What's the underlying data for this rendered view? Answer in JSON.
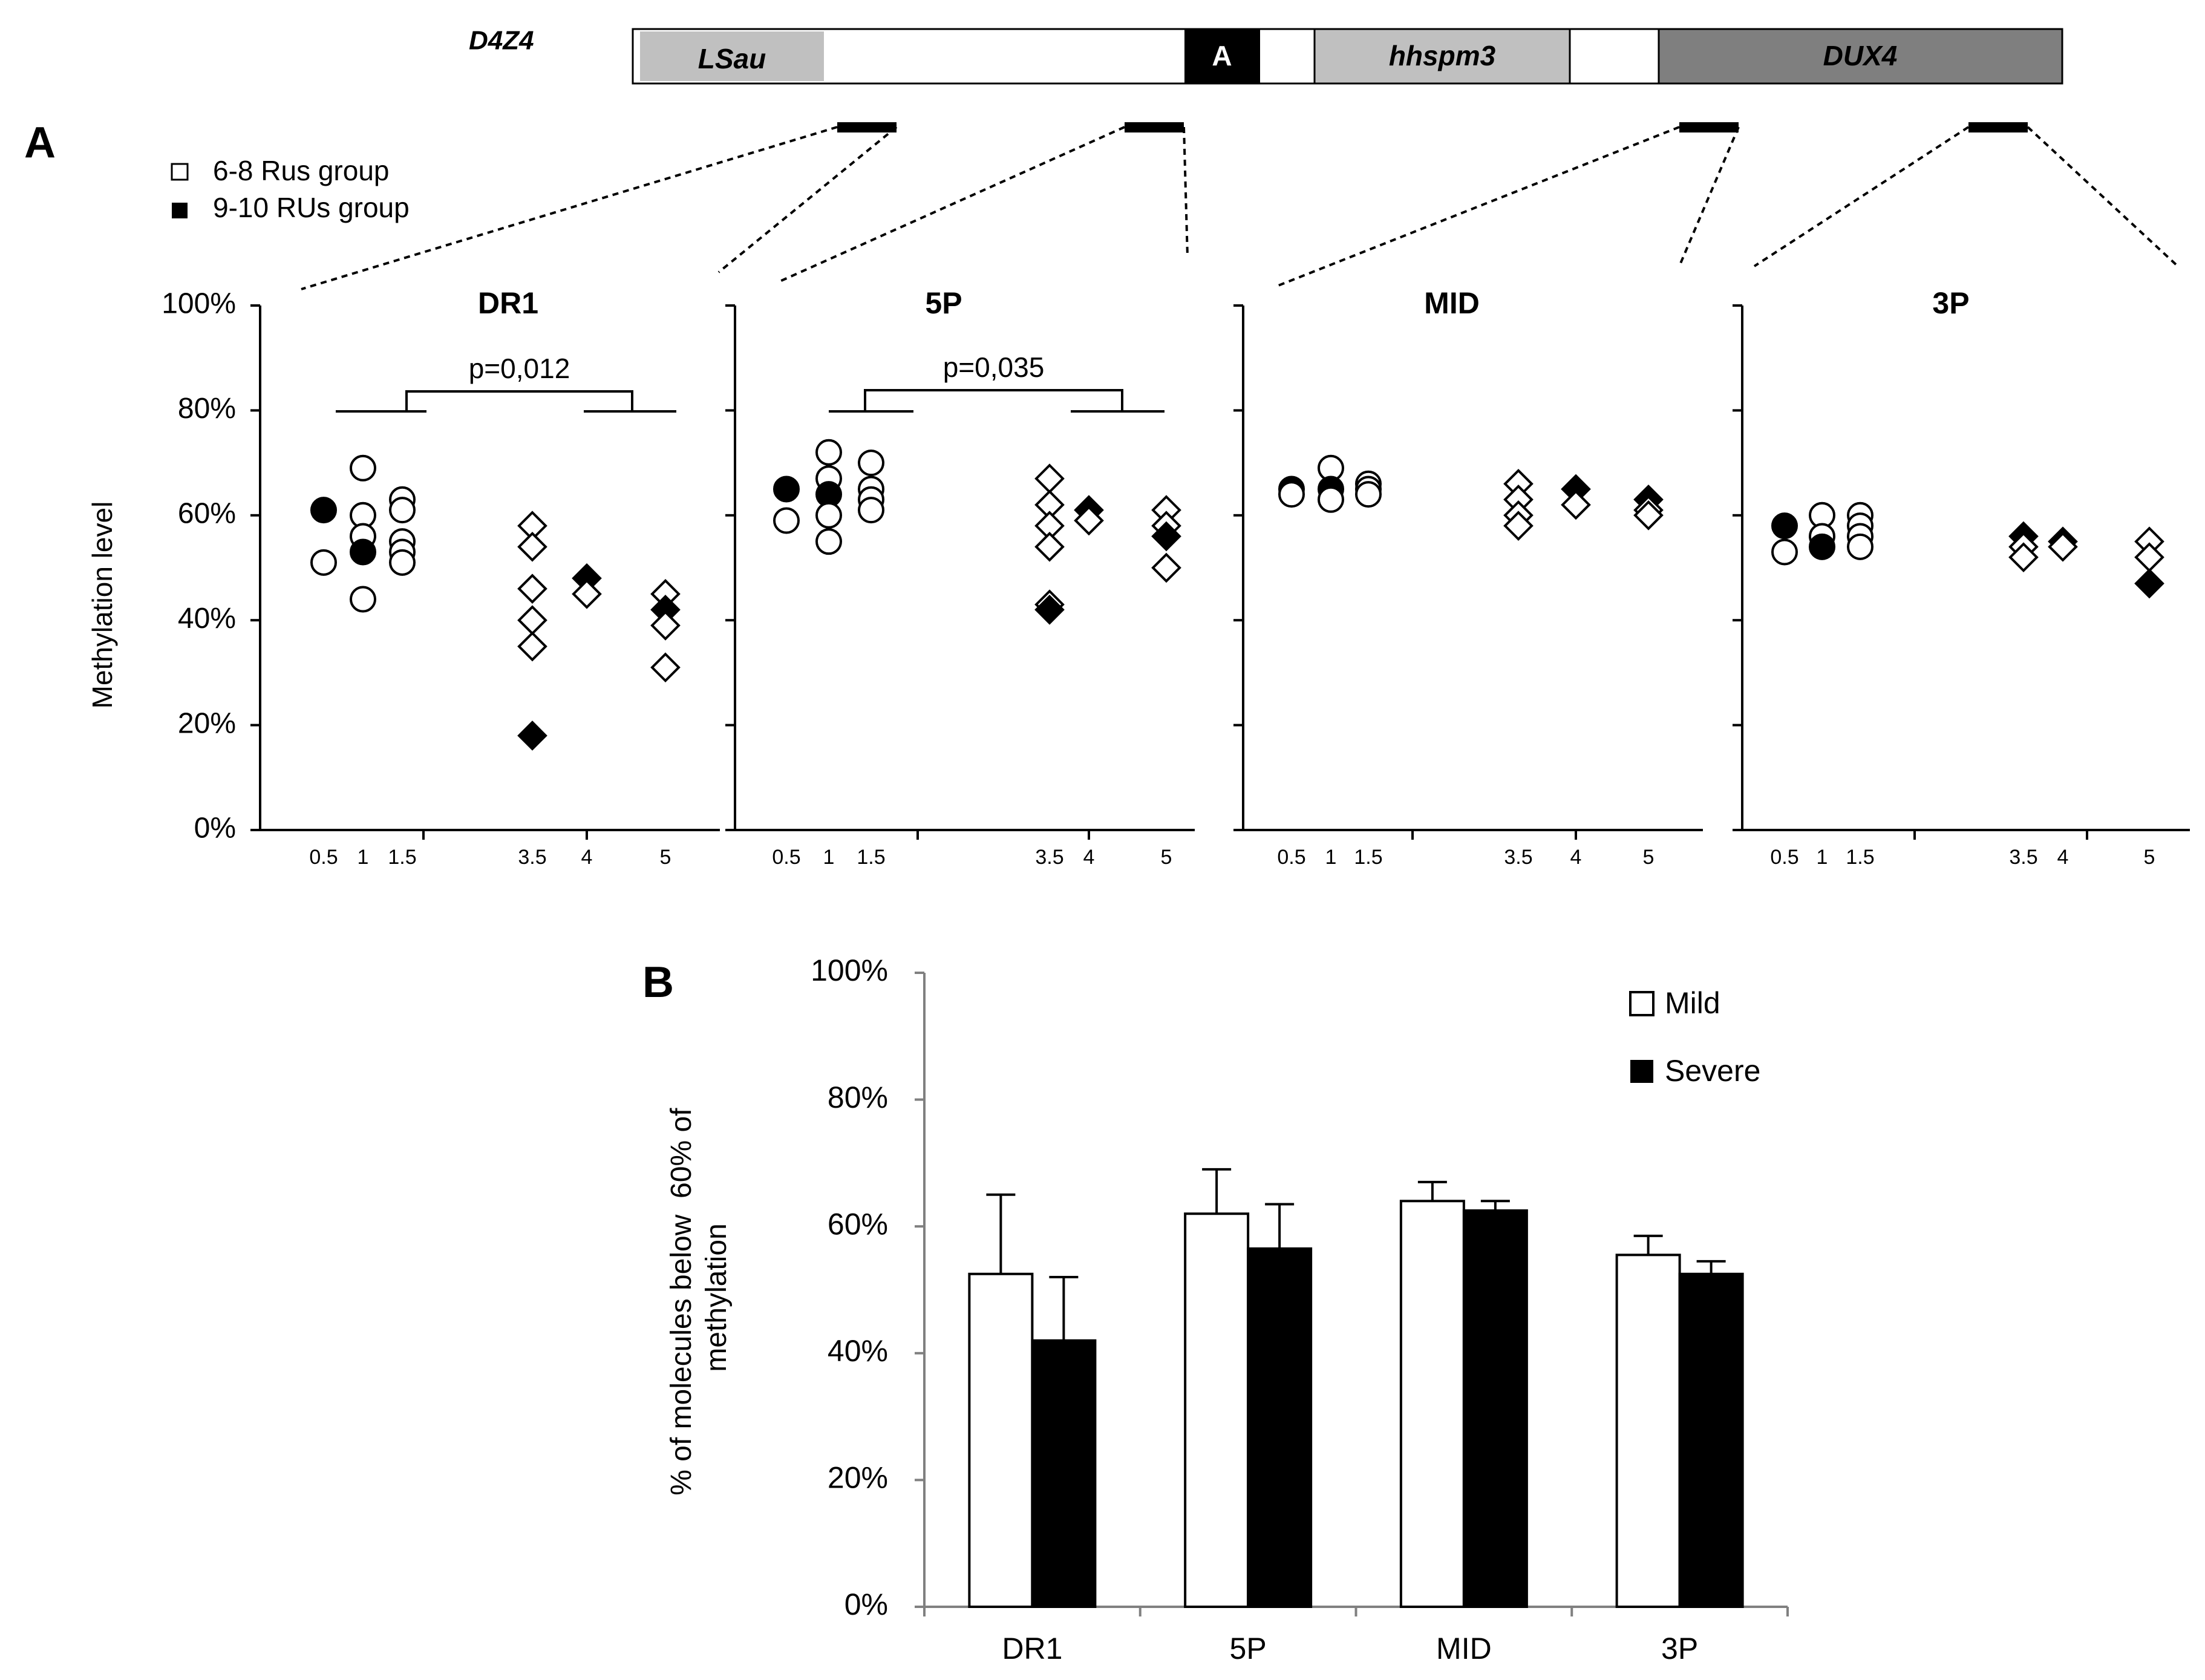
{
  "gene_map": {
    "title": "D4Z4",
    "segments": [
      {
        "label": "LSau",
        "color": "#c0c0c0"
      },
      {
        "label": "A",
        "color": "#000000"
      },
      {
        "label": "hhspm3",
        "color": "#c0c0c0"
      },
      {
        "label": "DUX4",
        "color": "#7f7f7f"
      }
    ]
  },
  "panel_labels": {
    "a": "A",
    "b": "B"
  },
  "legend_a": [
    {
      "label": "6-8 Rus group",
      "fill": "open"
    },
    {
      "label": "9-10 RUs group",
      "fill": "filled"
    }
  ],
  "chart_data": [
    {
      "type": "scatter",
      "panel": "A",
      "ylabel": "Methylation level",
      "ylim": [
        0,
        100
      ],
      "yticks": [
        "0%",
        "20%",
        "40%",
        "60%",
        "80%",
        "100%"
      ],
      "xtick_labels": [
        "0.5",
        "1",
        "1.5",
        "3.5",
        "4",
        "5"
      ],
      "groups": [
        {
          "name": "6-8 Rus group",
          "marker": "circle",
          "filled": false
        },
        {
          "name": "9-10 RUs group",
          "marker": "diamond",
          "filled": true
        }
      ],
      "subplots": [
        {
          "title": "DR1",
          "pvalue": "p=0,012",
          "points": [
            {
              "x": 0.5,
              "y": 61,
              "marker": "circle",
              "filled": true
            },
            {
              "x": 0.5,
              "y": 51,
              "marker": "circle",
              "filled": false
            },
            {
              "x": 1,
              "y": 69,
              "marker": "circle",
              "filled": false
            },
            {
              "x": 1,
              "y": 60,
              "marker": "circle",
              "filled": false
            },
            {
              "x": 1,
              "y": 56,
              "marker": "circle",
              "filled": false
            },
            {
              "x": 1,
              "y": 53,
              "marker": "circle",
              "filled": true
            },
            {
              "x": 1,
              "y": 44,
              "marker": "circle",
              "filled": false
            },
            {
              "x": 1.5,
              "y": 63,
              "marker": "circle",
              "filled": false
            },
            {
              "x": 1.5,
              "y": 61,
              "marker": "circle",
              "filled": false
            },
            {
              "x": 1.5,
              "y": 55,
              "marker": "circle",
              "filled": false
            },
            {
              "x": 1.5,
              "y": 53,
              "marker": "circle",
              "filled": false
            },
            {
              "x": 1.5,
              "y": 51,
              "marker": "circle",
              "filled": false
            },
            {
              "x": 3.5,
              "y": 58,
              "marker": "diamond",
              "filled": false
            },
            {
              "x": 3.5,
              "y": 54,
              "marker": "diamond",
              "filled": false
            },
            {
              "x": 3.5,
              "y": 46,
              "marker": "diamond",
              "filled": false
            },
            {
              "x": 3.5,
              "y": 40,
              "marker": "diamond",
              "filled": false
            },
            {
              "x": 3.5,
              "y": 35,
              "marker": "diamond",
              "filled": false
            },
            {
              "x": 3.5,
              "y": 18,
              "marker": "diamond",
              "filled": true
            },
            {
              "x": 4,
              "y": 48,
              "marker": "diamond",
              "filled": true
            },
            {
              "x": 4,
              "y": 45,
              "marker": "diamond",
              "filled": false
            },
            {
              "x": 5,
              "y": 45,
              "marker": "diamond",
              "filled": false
            },
            {
              "x": 5,
              "y": 42,
              "marker": "diamond",
              "filled": true
            },
            {
              "x": 5,
              "y": 39,
              "marker": "diamond",
              "filled": false
            },
            {
              "x": 5,
              "y": 31,
              "marker": "diamond",
              "filled": false
            }
          ]
        },
        {
          "title": "5P",
          "pvalue": "p=0,035",
          "points": [
            {
              "x": 0.5,
              "y": 65,
              "marker": "circle",
              "filled": true
            },
            {
              "x": 0.5,
              "y": 59,
              "marker": "circle",
              "filled": false
            },
            {
              "x": 1,
              "y": 72,
              "marker": "circle",
              "filled": false
            },
            {
              "x": 1,
              "y": 67,
              "marker": "circle",
              "filled": false
            },
            {
              "x": 1,
              "y": 64,
              "marker": "circle",
              "filled": true
            },
            {
              "x": 1,
              "y": 60,
              "marker": "circle",
              "filled": false
            },
            {
              "x": 1,
              "y": 55,
              "marker": "circle",
              "filled": false
            },
            {
              "x": 1.5,
              "y": 70,
              "marker": "circle",
              "filled": false
            },
            {
              "x": 1.5,
              "y": 65,
              "marker": "circle",
              "filled": false
            },
            {
              "x": 1.5,
              "y": 63,
              "marker": "circle",
              "filled": false
            },
            {
              "x": 1.5,
              "y": 61,
              "marker": "circle",
              "filled": false
            },
            {
              "x": 3.5,
              "y": 67,
              "marker": "diamond",
              "filled": false
            },
            {
              "x": 3.5,
              "y": 62,
              "marker": "diamond",
              "filled": false
            },
            {
              "x": 3.5,
              "y": 58,
              "marker": "diamond",
              "filled": false
            },
            {
              "x": 3.5,
              "y": 54,
              "marker": "diamond",
              "filled": false
            },
            {
              "x": 3.5,
              "y": 43,
              "marker": "diamond",
              "filled": false
            },
            {
              "x": 3.5,
              "y": 42,
              "marker": "diamond",
              "filled": true
            },
            {
              "x": 4,
              "y": 61,
              "marker": "diamond",
              "filled": true
            },
            {
              "x": 4,
              "y": 59,
              "marker": "diamond",
              "filled": false
            },
            {
              "x": 5,
              "y": 61,
              "marker": "diamond",
              "filled": false
            },
            {
              "x": 5,
              "y": 58,
              "marker": "diamond",
              "filled": false
            },
            {
              "x": 5,
              "y": 56,
              "marker": "diamond",
              "filled": true
            },
            {
              "x": 5,
              "y": 50,
              "marker": "diamond",
              "filled": false
            }
          ]
        },
        {
          "title": "MID",
          "pvalue": "",
          "points": [
            {
              "x": 0.5,
              "y": 65,
              "marker": "circle",
              "filled": true
            },
            {
              "x": 0.5,
              "y": 64,
              "marker": "circle",
              "filled": false
            },
            {
              "x": 1,
              "y": 69,
              "marker": "circle",
              "filled": false
            },
            {
              "x": 1,
              "y": 65,
              "marker": "circle",
              "filled": true
            },
            {
              "x": 1,
              "y": 63,
              "marker": "circle",
              "filled": false
            },
            {
              "x": 1.5,
              "y": 66,
              "marker": "circle",
              "filled": false
            },
            {
              "x": 1.5,
              "y": 65,
              "marker": "circle",
              "filled": false
            },
            {
              "x": 1.5,
              "y": 64,
              "marker": "circle",
              "filled": false
            },
            {
              "x": 3.5,
              "y": 66,
              "marker": "diamond",
              "filled": false
            },
            {
              "x": 3.5,
              "y": 63,
              "marker": "diamond",
              "filled": false
            },
            {
              "x": 3.5,
              "y": 60,
              "marker": "diamond",
              "filled": false
            },
            {
              "x": 3.5,
              "y": 58,
              "marker": "diamond",
              "filled": false
            },
            {
              "x": 4,
              "y": 65,
              "marker": "diamond",
              "filled": true
            },
            {
              "x": 4,
              "y": 62,
              "marker": "diamond",
              "filled": false
            },
            {
              "x": 5,
              "y": 63,
              "marker": "diamond",
              "filled": true
            },
            {
              "x": 5,
              "y": 61,
              "marker": "diamond",
              "filled": false
            },
            {
              "x": 5,
              "y": 60,
              "marker": "diamond",
              "filled": false
            }
          ]
        },
        {
          "title": "3P",
          "pvalue": "",
          "points": [
            {
              "x": 0.5,
              "y": 58,
              "marker": "circle",
              "filled": true
            },
            {
              "x": 0.5,
              "y": 53,
              "marker": "circle",
              "filled": false
            },
            {
              "x": 1,
              "y": 60,
              "marker": "circle",
              "filled": false
            },
            {
              "x": 1,
              "y": 56,
              "marker": "circle",
              "filled": false
            },
            {
              "x": 1,
              "y": 54,
              "marker": "circle",
              "filled": true
            },
            {
              "x": 1.5,
              "y": 60,
              "marker": "circle",
              "filled": false
            },
            {
              "x": 1.5,
              "y": 58,
              "marker": "circle",
              "filled": false
            },
            {
              "x": 1.5,
              "y": 56,
              "marker": "circle",
              "filled": false
            },
            {
              "x": 1.5,
              "y": 54,
              "marker": "circle",
              "filled": false
            },
            {
              "x": 3.5,
              "y": 56,
              "marker": "diamond",
              "filled": true
            },
            {
              "x": 3.5,
              "y": 54,
              "marker": "diamond",
              "filled": false
            },
            {
              "x": 3.5,
              "y": 52,
              "marker": "diamond",
              "filled": false
            },
            {
              "x": 4,
              "y": 55,
              "marker": "diamond",
              "filled": true
            },
            {
              "x": 4,
              "y": 54,
              "marker": "diamond",
              "filled": false
            },
            {
              "x": 5,
              "y": 55,
              "marker": "diamond",
              "filled": false
            },
            {
              "x": 5,
              "y": 52,
              "marker": "diamond",
              "filled": false
            },
            {
              "x": 5,
              "y": 47,
              "marker": "diamond",
              "filled": true
            }
          ]
        }
      ]
    },
    {
      "type": "bar",
      "panel": "B",
      "ylabel": "% of molecules below  60% of methylation",
      "ylim": [
        0,
        100
      ],
      "yticks": [
        "0%",
        "20%",
        "40%",
        "60%",
        "80%",
        "100%"
      ],
      "categories": [
        "DR1",
        "5P",
        "MID",
        "3P"
      ],
      "series": [
        {
          "name": "Mild",
          "color": "#ffffff",
          "values": [
            52.5,
            62,
            64,
            55.5
          ],
          "errors": [
            12.5,
            7,
            3,
            3
          ]
        },
        {
          "name": "Severe",
          "color": "#000000",
          "values": [
            42,
            56.5,
            62.5,
            52.5
          ],
          "errors": [
            10,
            7,
            1.5,
            2
          ]
        }
      ],
      "legend_position": "top-right"
    }
  ]
}
